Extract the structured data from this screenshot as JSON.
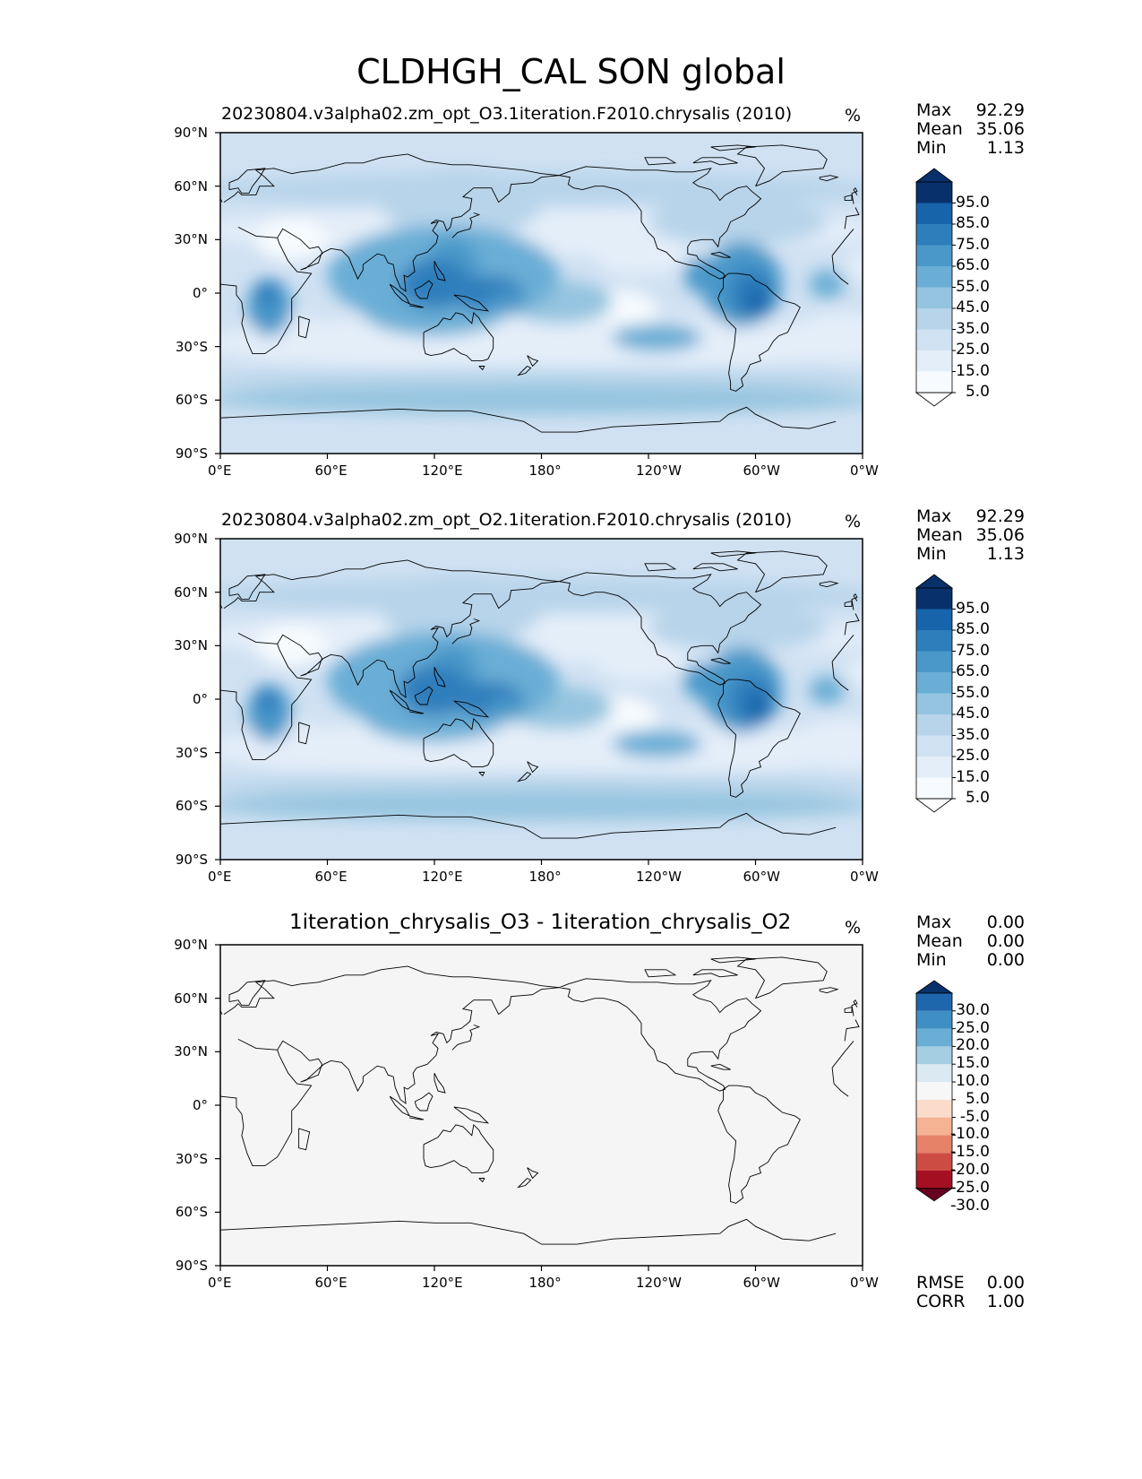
{
  "title": "CLDHGH_CAL SON global",
  "colors": {
    "blues": [
      "#f7fbff",
      "#e4eef9",
      "#d0e1f2",
      "#b7d4ea",
      "#94c4df",
      "#6aaed6",
      "#4a98c9",
      "#2e7ebc",
      "#1764ab",
      "#084a91",
      "#08306b"
    ],
    "diff": [
      "#67001f",
      "#a50f22",
      "#cc4c44",
      "#e58267",
      "#f6b394",
      "#fbdcca",
      "#f7f7f7",
      "#dbe9f2",
      "#a6cee3",
      "#6aaed6",
      "#3f8fc4",
      "#1f66ac",
      "#08306b"
    ],
    "diff_fill": "#f5f5f5",
    "coast": "#000000"
  },
  "panels": [
    {
      "title": "20230804.v3alpha02.zm_opt_O3.1iteration.F2010.chrysalis (2010)",
      "units": "%",
      "stats": [
        {
          "label": "Max",
          "value": "92.29"
        },
        {
          "label": "Mean",
          "value": "35.06"
        },
        {
          "label": "Min",
          "value": "1.13"
        }
      ],
      "colorbar_levels": [
        "95.0",
        "85.0",
        "75.0",
        "65.0",
        "55.0",
        "45.0",
        "35.0",
        "25.0",
        "15.0",
        "5.0"
      ]
    },
    {
      "title": "20230804.v3alpha02.zm_opt_O2.1iteration.F2010.chrysalis (2010)",
      "units": "%",
      "stats": [
        {
          "label": "Max",
          "value": "92.29"
        },
        {
          "label": "Mean",
          "value": "35.06"
        },
        {
          "label": "Min",
          "value": "1.13"
        }
      ],
      "colorbar_levels": [
        "95.0",
        "85.0",
        "75.0",
        "65.0",
        "55.0",
        "45.0",
        "35.0",
        "25.0",
        "15.0",
        "5.0"
      ]
    },
    {
      "title": "1iteration_chrysalis_O3 - 1iteration_chrysalis_O2",
      "units": "%",
      "stats": [
        {
          "label": "Max",
          "value": "0.00"
        },
        {
          "label": "Mean",
          "value": "0.00"
        },
        {
          "label": "Min",
          "value": "0.00"
        }
      ],
      "colorbar_levels": [
        "30.0",
        "25.0",
        "20.0",
        "15.0",
        "10.0",
        "5.0",
        "-5.0",
        "-10.0",
        "-15.0",
        "-20.0",
        "-25.0",
        "-30.0"
      ],
      "error_stats": [
        {
          "label": "RMSE",
          "value": "0.00"
        },
        {
          "label": "CORR",
          "value": "1.00"
        }
      ]
    }
  ],
  "chart_data": {
    "type": "heatmap",
    "title": "CLDHGH_CAL SON global",
    "x_ticks": [
      "0°E",
      "60°E",
      "120°E",
      "180°",
      "120°W",
      "60°W",
      "0°W"
    ],
    "y_ticks": [
      "90°N",
      "60°N",
      "30°N",
      "0°",
      "30°S",
      "60°S",
      "90°S"
    ],
    "xlim": [
      0,
      360
    ],
    "ylim": [
      -90,
      90
    ],
    "cloud_maxima": [
      {
        "lon": 110,
        "lat": 5,
        "value": 85
      },
      {
        "lon": 140,
        "lat": 2,
        "value": 80
      },
      {
        "lon": 25,
        "lat": 0,
        "value": 75
      },
      {
        "lon": 295,
        "lat": 2,
        "value": 80
      },
      {
        "lon": 265,
        "lat": 12,
        "value": 65
      }
    ],
    "difference_value": 0.0
  }
}
